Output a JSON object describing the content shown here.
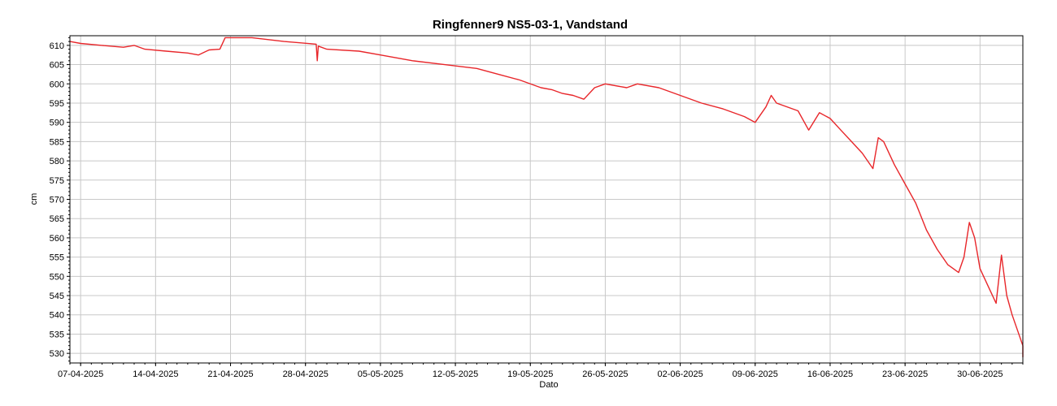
{
  "chart_data": {
    "type": "line",
    "title": "Ringfenner9 NS5-03-1, Vandstand",
    "xlabel": "Dato",
    "ylabel": "cm",
    "x_range": [
      "2025-04-06",
      "2025-07-04"
    ],
    "ylim": [
      527.5,
      612.5
    ],
    "x_ticks": [
      "07-04-2025",
      "14-04-2025",
      "21-04-2025",
      "28-04-2025",
      "05-05-2025",
      "12-05-2025",
      "19-05-2025",
      "26-05-2025",
      "02-06-2025",
      "09-06-2025",
      "16-06-2025",
      "23-06-2025",
      "30-06-2025"
    ],
    "y_ticks": [
      530,
      535,
      540,
      545,
      550,
      555,
      560,
      565,
      570,
      575,
      580,
      585,
      590,
      595,
      600,
      605,
      610
    ],
    "grid": true,
    "series": [
      {
        "color": "#e8262a",
        "points": [
          [
            "2025-04-05",
            611.0
          ],
          [
            "2025-04-07",
            610.5
          ],
          [
            "2025-04-09",
            610.0
          ],
          [
            "2025-04-11",
            609.5
          ],
          [
            "2025-04-12",
            610.0
          ],
          [
            "2025-04-13",
            609.0
          ],
          [
            "2025-04-15",
            608.5
          ],
          [
            "2025-04-17",
            608.0
          ],
          [
            "2025-04-18",
            607.5
          ],
          [
            "2025-04-19",
            608.8
          ],
          [
            "2025-04-20",
            609.0
          ],
          [
            "2025-04-20.5",
            612.0
          ],
          [
            "2025-04-23",
            612.0
          ],
          [
            "2025-04-26",
            611.0
          ],
          [
            "2025-04-29",
            610.3
          ],
          [
            "2025-04-29.1",
            606.0
          ],
          [
            "2025-04-29.2",
            609.8
          ],
          [
            "2025-04-30",
            609.0
          ],
          [
            "2025-05-03",
            608.5
          ],
          [
            "2025-05-05",
            607.5
          ],
          [
            "2025-05-08",
            606.0
          ],
          [
            "2025-05-11",
            605.0
          ],
          [
            "2025-05-14",
            604.0
          ],
          [
            "2025-05-16",
            602.5
          ],
          [
            "2025-05-18",
            601.0
          ],
          [
            "2025-05-20",
            599.0
          ],
          [
            "2025-05-21",
            598.5
          ],
          [
            "2025-05-22",
            597.5
          ],
          [
            "2025-05-23",
            597.0
          ],
          [
            "2025-05-24",
            596.0
          ],
          [
            "2025-05-25",
            599.0
          ],
          [
            "2025-05-26",
            600.0
          ],
          [
            "2025-05-28",
            599.0
          ],
          [
            "2025-05-29",
            600.0
          ],
          [
            "2025-05-31",
            599.0
          ],
          [
            "2025-06-02",
            597.0
          ],
          [
            "2025-06-04",
            595.0
          ],
          [
            "2025-06-06",
            593.5
          ],
          [
            "2025-06-08",
            591.5
          ],
          [
            "2025-06-09",
            590.0
          ],
          [
            "2025-06-10",
            594.0
          ],
          [
            "2025-06-10.5",
            597.0
          ],
          [
            "2025-06-11",
            595.0
          ],
          [
            "2025-06-13",
            593.0
          ],
          [
            "2025-06-14",
            588.0
          ],
          [
            "2025-06-15",
            592.5
          ],
          [
            "2025-06-16",
            591.0
          ],
          [
            "2025-06-17",
            588.0
          ],
          [
            "2025-06-18",
            585.0
          ],
          [
            "2025-06-19",
            582.0
          ],
          [
            "2025-06-20",
            578.0
          ],
          [
            "2025-06-20.5",
            586.0
          ],
          [
            "2025-06-21",
            585.0
          ],
          [
            "2025-06-22",
            579.0
          ],
          [
            "2025-06-23",
            574.0
          ],
          [
            "2025-06-24",
            569.0
          ],
          [
            "2025-06-25",
            562.0
          ],
          [
            "2025-06-26",
            557.0
          ],
          [
            "2025-06-27",
            553.0
          ],
          [
            "2025-06-28",
            551.0
          ],
          [
            "2025-06-28.5",
            555.0
          ],
          [
            "2025-06-29",
            564.0
          ],
          [
            "2025-06-29.5",
            560.0
          ],
          [
            "2025-06-30",
            552.0
          ],
          [
            "2025-07-01",
            546.0
          ],
          [
            "2025-07-01.5",
            543.0
          ],
          [
            "2025-07-02",
            555.5
          ],
          [
            "2025-07-02.5",
            545.0
          ],
          [
            "2025-07-03",
            540.0
          ],
          [
            "2025-07-03.5",
            536.0
          ],
          [
            "2025-07-04",
            532.0
          ],
          [
            "2025-07-04.5",
            529.0
          ]
        ]
      }
    ]
  }
}
